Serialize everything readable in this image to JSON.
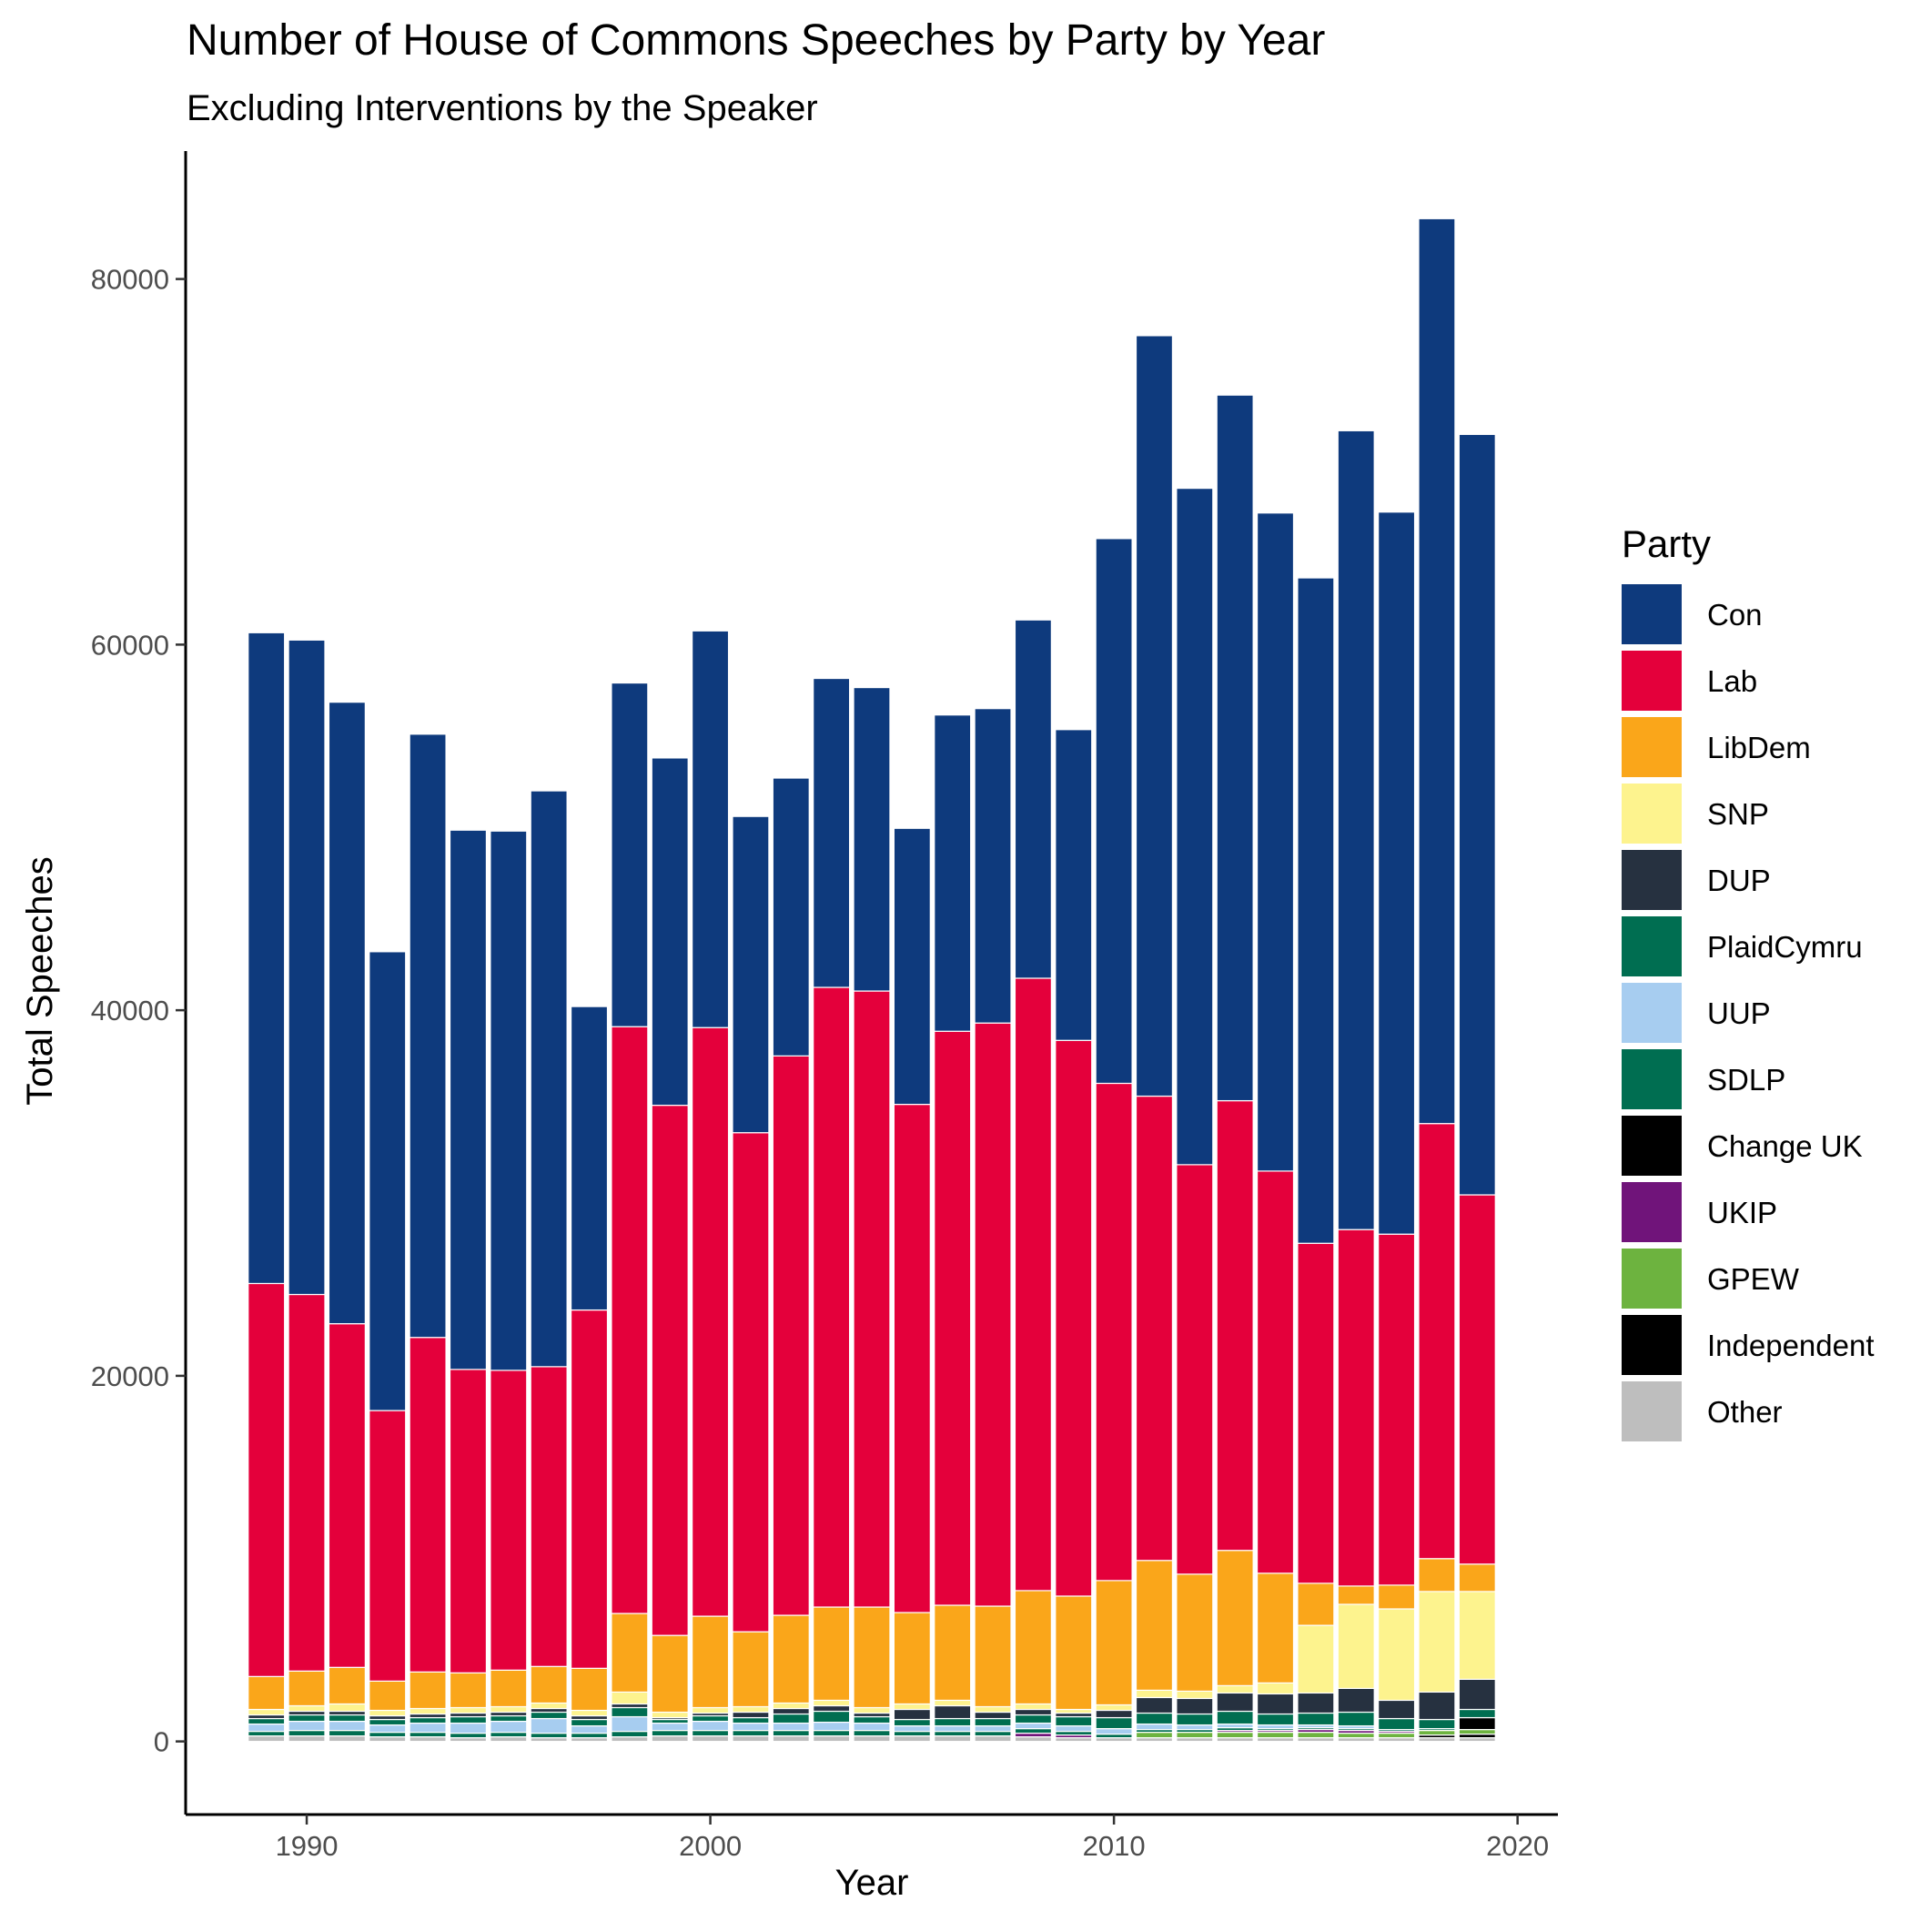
{
  "chart_data": {
    "type": "bar",
    "stacked": true,
    "title": "Number of House of Commons Speeches by Party by Year",
    "subtitle": "Excluding Interventions by the Speaker",
    "xlabel": "Year",
    "ylabel": "Total Speeches",
    "xlim": [
      1987,
      2021
    ],
    "ylim": [
      -4000,
      87000
    ],
    "xticks": [
      1990,
      2000,
      2010,
      2020
    ],
    "yticks": [
      0,
      20000,
      40000,
      60000,
      80000
    ],
    "grid": false,
    "legend_title": "Party",
    "legend_position": "right",
    "x": [
      1989,
      1990,
      1991,
      1992,
      1993,
      1994,
      1995,
      1996,
      1997,
      1998,
      1999,
      2000,
      2001,
      2002,
      2003,
      2004,
      2005,
      2006,
      2007,
      2008,
      2009,
      2010,
      2011,
      2012,
      2013,
      2014,
      2015,
      2016,
      2017,
      2018,
      2019
    ],
    "series": [
      {
        "name": "Other",
        "color": "#bebebe",
        "values": [
          300,
          300,
          300,
          250,
          250,
          200,
          250,
          200,
          200,
          250,
          300,
          300,
          300,
          300,
          300,
          300,
          300,
          300,
          300,
          250,
          200,
          200,
          200,
          200,
          200,
          200,
          200,
          200,
          200,
          200,
          200
        ]
      },
      {
        "name": "Independent",
        "color": "#000000",
        "values": [
          0,
          0,
          0,
          0,
          0,
          0,
          0,
          0,
          0,
          0,
          0,
          0,
          0,
          0,
          0,
          0,
          0,
          0,
          0,
          0,
          0,
          0,
          0,
          0,
          0,
          0,
          0,
          0,
          0,
          150,
          200
        ]
      },
      {
        "name": "GPEW",
        "color": "#6db33f",
        "values": [
          0,
          0,
          0,
          0,
          0,
          0,
          0,
          0,
          0,
          0,
          0,
          0,
          0,
          0,
          0,
          0,
          0,
          0,
          0,
          0,
          0,
          0,
          300,
          300,
          300,
          300,
          300,
          250,
          250,
          250,
          250
        ]
      },
      {
        "name": "UKIP",
        "color": "#70147a",
        "values": [
          0,
          0,
          0,
          0,
          0,
          0,
          0,
          0,
          0,
          0,
          0,
          0,
          0,
          0,
          0,
          0,
          0,
          0,
          0,
          200,
          150,
          0,
          0,
          0,
          100,
          100,
          150,
          150,
          100,
          0,
          0
        ]
      },
      {
        "name": "Change UK",
        "color": "#000000",
        "values": [
          0,
          0,
          0,
          0,
          0,
          0,
          0,
          0,
          0,
          0,
          0,
          0,
          0,
          0,
          0,
          0,
          0,
          0,
          0,
          0,
          0,
          0,
          0,
          0,
          0,
          0,
          0,
          0,
          0,
          0,
          650
        ]
      },
      {
        "name": "SDLP",
        "color": "#006e51",
        "values": [
          250,
          300,
          300,
          250,
          250,
          250,
          250,
          250,
          250,
          300,
          300,
          300,
          300,
          300,
          300,
          300,
          250,
          250,
          250,
          250,
          200,
          200,
          150,
          150,
          150,
          100,
          100,
          100,
          100,
          100,
          0
        ]
      },
      {
        "name": "UUP",
        "color": "#a7cdf0",
        "values": [
          400,
          500,
          500,
          400,
          500,
          550,
          600,
          800,
          400,
          800,
          400,
          500,
          400,
          400,
          450,
          400,
          300,
          300,
          300,
          300,
          300,
          300,
          300,
          250,
          200,
          200,
          150,
          150,
          0,
          0,
          0
        ]
      },
      {
        "name": "PlaidCymru",
        "color": "#006e51",
        "values": [
          300,
          350,
          350,
          300,
          300,
          350,
          300,
          350,
          350,
          500,
          200,
          300,
          300,
          500,
          600,
          350,
          350,
          400,
          400,
          450,
          500,
          600,
          600,
          600,
          700,
          600,
          650,
          750,
          600,
          500,
          450
        ]
      },
      {
        "name": "DUP",
        "color": "#263140",
        "values": [
          200,
          200,
          200,
          200,
          200,
          200,
          200,
          200,
          200,
          200,
          100,
          150,
          300,
          300,
          300,
          200,
          550,
          700,
          350,
          300,
          200,
          400,
          850,
          850,
          1000,
          1100,
          1100,
          1300,
          1000,
          1500,
          1650
        ]
      },
      {
        "name": "SNP",
        "color": "#fdf38e",
        "values": [
          300,
          300,
          400,
          300,
          300,
          300,
          300,
          300,
          300,
          650,
          300,
          300,
          300,
          300,
          300,
          300,
          300,
          300,
          300,
          300,
          200,
          300,
          400,
          400,
          400,
          600,
          3700,
          4600,
          5000,
          5500,
          4800
        ]
      },
      {
        "name": "LibDem",
        "color": "#faa61a",
        "values": [
          1800,
          1900,
          2000,
          1600,
          2000,
          1900,
          2000,
          2000,
          2300,
          4300,
          4200,
          5000,
          4100,
          4800,
          5100,
          5500,
          5000,
          5200,
          5500,
          6200,
          6200,
          6800,
          7100,
          6400,
          7400,
          6000,
          2300,
          1000,
          1300,
          1800,
          1500
        ]
      },
      {
        "name": "Lab",
        "color": "#e4003b",
        "values": [
          21500,
          20600,
          18800,
          14800,
          18300,
          16600,
          16400,
          16400,
          19600,
          32100,
          29000,
          32200,
          27300,
          30600,
          33900,
          33700,
          27800,
          31400,
          31900,
          33500,
          30400,
          27200,
          25400,
          22400,
          24600,
          22000,
          18600,
          19500,
          19200,
          23800,
          20200
        ]
      },
      {
        "name": "Con",
        "color": "#0e3a7d",
        "values": [
          35600,
          35800,
          34000,
          25100,
          33000,
          29500,
          29500,
          31500,
          16600,
          18800,
          19000,
          21700,
          17300,
          15200,
          16900,
          16600,
          15100,
          17300,
          17200,
          19600,
          17000,
          29800,
          41600,
          37000,
          38600,
          36000,
          36400,
          43700,
          39500,
          49500,
          41600
        ]
      }
    ]
  }
}
